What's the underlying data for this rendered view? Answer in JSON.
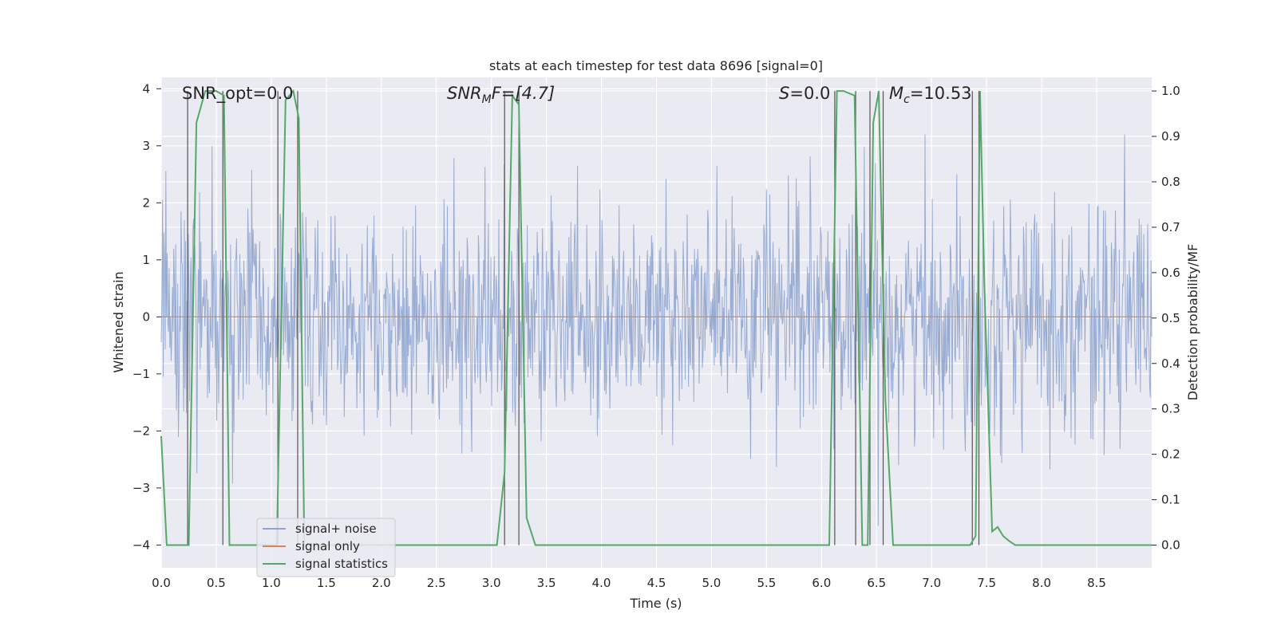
{
  "chart_data": {
    "type": "line",
    "title": "stats at each timestep for test data 8696 [signal=0]",
    "xlabel": "Time (s)",
    "ylabel": "Whitened strain",
    "y2label": "Detection probability/MF",
    "xlim": [
      0.0,
      9.0
    ],
    "ylim": [
      -4.4,
      4.2
    ],
    "y2lim": [
      -0.05,
      1.03
    ],
    "x_ticks": [
      "0.0",
      "0.5",
      "1.0",
      "1.5",
      "2.0",
      "2.5",
      "3.0",
      "3.5",
      "4.0",
      "4.5",
      "5.0",
      "5.5",
      "6.0",
      "6.5",
      "7.0",
      "7.5",
      "8.0",
      "8.5"
    ],
    "y_ticks": [
      "4",
      "3",
      "2",
      "1",
      "0",
      "−1",
      "−2",
      "−3",
      "−4"
    ],
    "y2_ticks": [
      "1.0",
      "0.9",
      "0.8",
      "0.7",
      "0.6",
      "0.5",
      "0.4",
      "0.3",
      "0.2",
      "0.1",
      "0.0"
    ],
    "grid": true,
    "legend_position": "bottom-left",
    "annotations": {
      "snr_opt": "SNR_opt=0.0",
      "snr_mf_main": "SNR",
      "snr_mf_sub": "M",
      "snr_mf_tail": "F=[4.7]",
      "s_main": "S",
      "s_tail": "=0.0",
      "mc_main": "M",
      "mc_sub": "c",
      "mc_tail": "=10.53"
    },
    "series": [
      {
        "name": "signal+ noise",
        "color": "#8fa5cf",
        "axis": "left",
        "description": "whitened noise, approx. within [-2, 2] with spikes to about ±3.2",
        "y_range": [
          -3.8,
          3.2
        ]
      },
      {
        "name": "signal only",
        "color": "#dd8452",
        "axis": "left",
        "x": [
          0.0,
          9.0
        ],
        "y": [
          0.0,
          0.0
        ]
      },
      {
        "name": "signal statistics",
        "color": "#55a868",
        "axis": "right",
        "x": [
          0.0,
          0.05,
          0.25,
          0.32,
          0.4,
          0.5,
          0.57,
          0.62,
          1.0,
          1.05,
          1.13,
          1.2,
          1.25,
          1.3,
          3.05,
          3.12,
          3.19,
          3.25,
          3.32,
          3.4,
          6.07,
          6.14,
          6.2,
          6.3,
          6.37,
          6.42,
          6.47,
          6.52,
          6.58,
          6.65,
          6.75,
          7.35,
          7.4,
          7.44,
          7.48,
          7.55,
          7.6,
          7.65,
          7.7,
          7.76,
          9.0
        ],
        "y": [
          0.24,
          0.0,
          0.0,
          0.93,
          1.0,
          1.0,
          0.99,
          0.0,
          0.0,
          0.0,
          0.98,
          1.0,
          0.94,
          0.0,
          0.0,
          0.16,
          0.99,
          0.97,
          0.06,
          0.0,
          0.0,
          1.0,
          1.0,
          0.99,
          0.0,
          0.0,
          0.93,
          1.0,
          0.32,
          0.0,
          0.0,
          0.0,
          0.02,
          1.0,
          0.57,
          0.03,
          0.04,
          0.02,
          0.01,
          0.0,
          0.0
        ]
      }
    ],
    "vertical_markers_s": [
      0.24,
      0.56,
      1.06,
      1.24,
      3.12,
      3.25,
      6.12,
      6.31,
      6.44,
      6.56,
      7.37,
      7.43
    ]
  }
}
